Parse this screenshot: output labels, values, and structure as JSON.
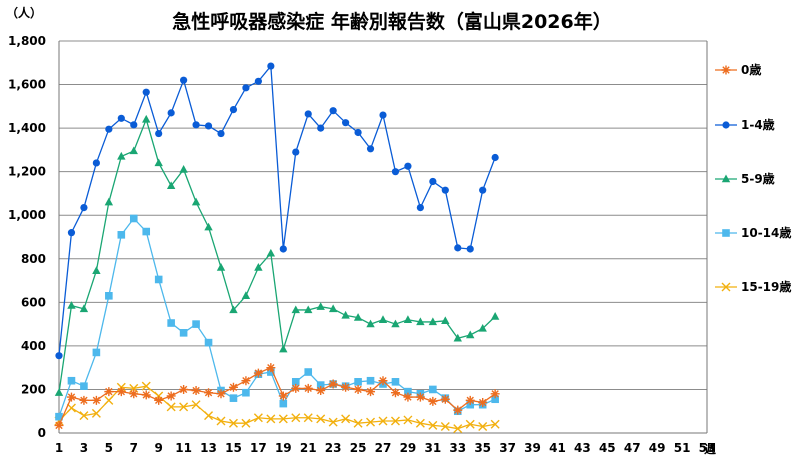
{
  "chart_data": {
    "type": "line",
    "title": "急性呼吸器感染症 年齢別報告数（富山県2026年）",
    "ylabel": "（人）",
    "xlabel": "週",
    "ylim": [
      0,
      1800
    ],
    "yticks": [
      0,
      200,
      400,
      600,
      800,
      1000,
      1200,
      1400,
      1600,
      1800
    ],
    "ytick_labels": [
      "0",
      "200",
      "400",
      "600",
      "800",
      "1,000",
      "1,200",
      "1,400",
      "1,600",
      "1,800"
    ],
    "xticks": [
      1,
      3,
      5,
      7,
      9,
      11,
      13,
      15,
      17,
      19,
      21,
      23,
      25,
      27,
      29,
      31,
      33,
      35,
      37,
      39,
      41,
      43,
      45,
      47,
      49,
      51,
      53
    ],
    "xlim": [
      1,
      53
    ],
    "grid": true,
    "legend_position": "right",
    "series": [
      {
        "name": "0歳",
        "color": "#ED6D1F",
        "marker": "star",
        "x": [
          1,
          2,
          3,
          4,
          5,
          6,
          7,
          8,
          9,
          10,
          11,
          12,
          13,
          14,
          15,
          16,
          17,
          18,
          19,
          20,
          21,
          22,
          23,
          24,
          25,
          26,
          27,
          28,
          29,
          30,
          31,
          32,
          33,
          34,
          35,
          36
        ],
        "values": [
          35,
          165,
          150,
          150,
          190,
          190,
          180,
          175,
          150,
          170,
          200,
          195,
          185,
          180,
          210,
          240,
          275,
          300,
          170,
          205,
          205,
          195,
          225,
          210,
          200,
          190,
          240,
          185,
          165,
          165,
          145,
          155,
          105,
          150,
          140,
          180
        ]
      },
      {
        "name": "1-4歳",
        "color": "#0A5CD6",
        "marker": "circle",
        "x": [
          1,
          2,
          3,
          4,
          5,
          6,
          7,
          8,
          9,
          10,
          11,
          12,
          13,
          14,
          15,
          16,
          17,
          18,
          19,
          20,
          21,
          22,
          23,
          24,
          25,
          26,
          27,
          28,
          29,
          30,
          31,
          32,
          33,
          34,
          35,
          36
        ],
        "values": [
          355,
          920,
          1035,
          1240,
          1395,
          1445,
          1415,
          1565,
          1375,
          1470,
          1620,
          1415,
          1410,
          1375,
          1485,
          1585,
          1615,
          1685,
          845,
          1290,
          1465,
          1400,
          1480,
          1425,
          1380,
          1305,
          1460,
          1200,
          1225,
          1035,
          1155,
          1115,
          850,
          845,
          1115,
          1265
        ]
      },
      {
        "name": "5-9歳",
        "color": "#1AA673",
        "marker": "triangle",
        "x": [
          1,
          2,
          3,
          4,
          5,
          6,
          7,
          8,
          9,
          10,
          11,
          12,
          13,
          14,
          15,
          16,
          17,
          18,
          19,
          20,
          21,
          22,
          23,
          24,
          25,
          26,
          27,
          28,
          29,
          30,
          31,
          32,
          33,
          34,
          35,
          36
        ],
        "values": [
          185,
          585,
          570,
          745,
          1060,
          1270,
          1295,
          1440,
          1240,
          1135,
          1210,
          1060,
          945,
          760,
          565,
          630,
          760,
          825,
          385,
          565,
          565,
          580,
          570,
          540,
          530,
          500,
          520,
          500,
          520,
          510,
          510,
          515,
          435,
          450,
          480,
          535
        ]
      },
      {
        "name": "10-14歳",
        "color": "#4DB8EC",
        "marker": "square",
        "x": [
          1,
          2,
          3,
          4,
          5,
          6,
          7,
          8,
          9,
          10,
          11,
          12,
          13,
          14,
          15,
          16,
          17,
          18,
          19,
          20,
          21,
          22,
          23,
          24,
          25,
          26,
          27,
          28,
          29,
          30,
          31,
          32,
          33,
          34,
          35,
          36
        ],
        "values": [
          75,
          240,
          215,
          370,
          630,
          910,
          985,
          925,
          705,
          505,
          460,
          500,
          415,
          195,
          160,
          185,
          270,
          280,
          135,
          235,
          280,
          220,
          225,
          215,
          235,
          240,
          225,
          235,
          190,
          180,
          200,
          160,
          100,
          130,
          130,
          155
        ]
      },
      {
        "name": "15-19歳",
        "color": "#F2B00F",
        "marker": "x",
        "x": [
          1,
          2,
          3,
          4,
          5,
          6,
          7,
          8,
          9,
          10,
          11,
          12,
          13,
          14,
          15,
          16,
          17,
          18,
          19,
          20,
          21,
          22,
          23,
          24,
          25,
          26,
          27,
          28,
          29,
          30,
          31,
          32,
          33,
          34,
          35,
          36
        ],
        "values": [
          55,
          115,
          80,
          90,
          150,
          210,
          205,
          215,
          170,
          120,
          120,
          130,
          80,
          55,
          45,
          45,
          70,
          65,
          65,
          70,
          70,
          65,
          50,
          65,
          45,
          50,
          55,
          55,
          60,
          45,
          35,
          30,
          20,
          40,
          30,
          40
        ]
      }
    ]
  }
}
